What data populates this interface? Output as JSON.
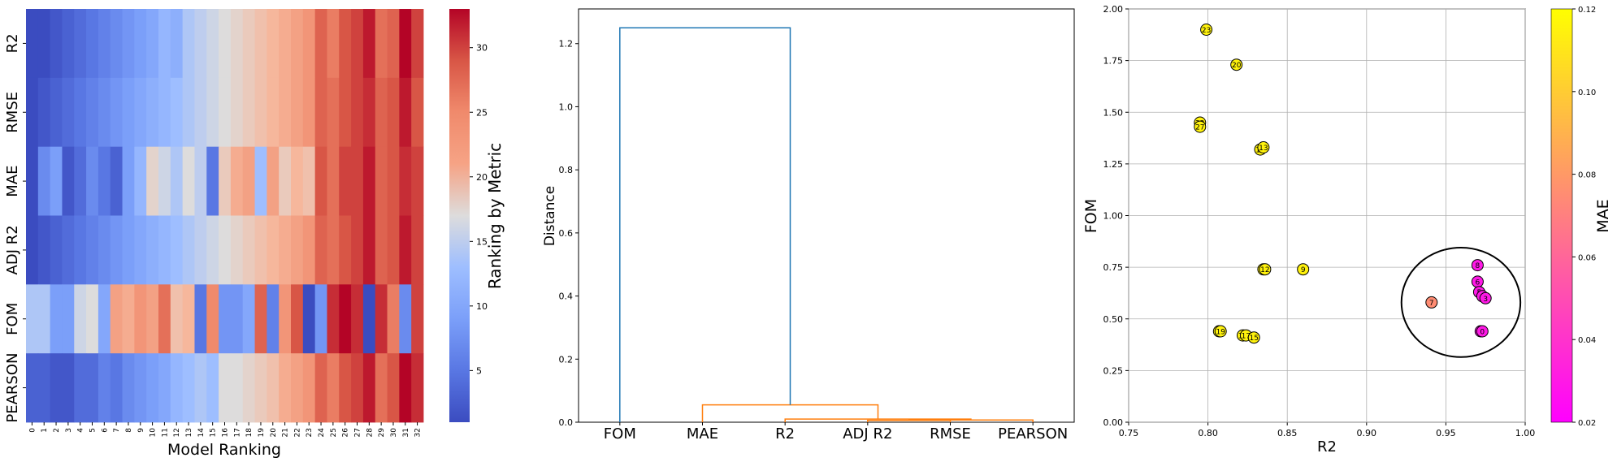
{
  "chart_data": [
    {
      "type": "heatmap",
      "rows": [
        "R2",
        "RMSE",
        "MAE",
        "ADJ R2",
        "FOM",
        "PEARSON"
      ],
      "columns": [
        "0",
        "1",
        "2",
        "3",
        "4",
        "5",
        "6",
        "7",
        "8",
        "9",
        "10",
        "11",
        "12",
        "13",
        "14",
        "15",
        "16",
        "17",
        "18",
        "19",
        "20",
        "21",
        "22",
        "23",
        "24",
        "25",
        "26",
        "27",
        "28",
        "29",
        "30",
        "31",
        "32"
      ],
      "values": [
        [
          1,
          1,
          2,
          3,
          4,
          5,
          6,
          7,
          8,
          9,
          10,
          12,
          11,
          14,
          15,
          16,
          17,
          18,
          19,
          20,
          21,
          22,
          23,
          24,
          28,
          26,
          29,
          30,
          32,
          27,
          28,
          33,
          30
        ],
        [
          1,
          2,
          3,
          4,
          5,
          6,
          7,
          8,
          9,
          10,
          11,
          12,
          13,
          14,
          15,
          16,
          17,
          18,
          19,
          20,
          21,
          22,
          23,
          24,
          28,
          27,
          29,
          30,
          31,
          28,
          29,
          32,
          29
        ],
        [
          1,
          7,
          9,
          2,
          4,
          7,
          5,
          3,
          9,
          12,
          18,
          16,
          14,
          17,
          15,
          5,
          19,
          22,
          23,
          13,
          23,
          19,
          21,
          20,
          29,
          27,
          30,
          30,
          32,
          28,
          29,
          31,
          30
        ],
        [
          1,
          2,
          3,
          4,
          5,
          6,
          7,
          8,
          9,
          10,
          11,
          12,
          13,
          14,
          15,
          16,
          17,
          18,
          19,
          20,
          21,
          22,
          23,
          24,
          28,
          27,
          29,
          30,
          32,
          28,
          29,
          32,
          30
        ],
        [
          14,
          14,
          9,
          9,
          16,
          17,
          10,
          23,
          22,
          24,
          23,
          27,
          20,
          21,
          5,
          25,
          8,
          8,
          10,
          28,
          6,
          24,
          29,
          1,
          8,
          31,
          33,
          31,
          1,
          31,
          26,
          7,
          30
        ],
        [
          3,
          3,
          2,
          2,
          4,
          4,
          6,
          5,
          7,
          8,
          9,
          10,
          12,
          13,
          14,
          13,
          17,
          17,
          18,
          19,
          20,
          22,
          23,
          24,
          28,
          26,
          29,
          30,
          32,
          27,
          29,
          33,
          31
        ]
      ],
      "xlabel": "Model Ranking",
      "colorbar_label": "Ranking by Metric",
      "color_range": [
        1,
        33
      ],
      "colorbar_ticks": [
        5,
        10,
        15,
        20,
        25,
        30
      ],
      "colormap": "coolwarm"
    },
    {
      "type": "dendrogram",
      "leaves": [
        "FOM",
        "MAE",
        "R2",
        "ADJ R2",
        "RMSE",
        "PEARSON"
      ],
      "merges": [
        {
          "left": 3,
          "right": 4,
          "left_height": 0.0,
          "right_height": 0.0,
          "height": 0.006,
          "color": "#ff7f0e"
        },
        {
          "left": 3.5,
          "right": 5,
          "left_height": 0.006,
          "right_height": 0.0,
          "height": 0.007,
          "color": "#ff7f0e"
        },
        {
          "left": 2,
          "right": 4.25,
          "left_height": 0.0,
          "right_height": 0.007,
          "height": 0.01,
          "color": "#ff7f0e"
        },
        {
          "left": 1,
          "right": 3.125,
          "left_height": 0.0,
          "right_height": 0.01,
          "height": 0.055,
          "color": "#ff7f0e"
        },
        {
          "left": 0,
          "right": 2.0625,
          "left_height": 0.0,
          "right_height": 0.055,
          "height": 1.25,
          "color": "#1f77b4"
        }
      ],
      "ylabel": "Distance",
      "ylim": [
        0,
        1.31
      ],
      "yticks": [
        "0.0",
        "0.2",
        "0.4",
        "0.6",
        "0.8",
        "1.0",
        "1.2"
      ]
    },
    {
      "type": "scatter",
      "xlabel": "R2",
      "ylabel": "FOM",
      "colorbar_label": "MAE",
      "xlim": [
        0.75,
        1.0
      ],
      "ylim": [
        0.0,
        2.0
      ],
      "xticks": [
        "0.75",
        "0.80",
        "0.85",
        "0.90",
        "0.95",
        "1.00"
      ],
      "yticks": [
        "0.00",
        "0.25",
        "0.50",
        "0.75",
        "1.00",
        "1.25",
        "1.50",
        "1.75",
        "2.00"
      ],
      "colorbar_ticks": [
        "0.02",
        "0.04",
        "0.06",
        "0.08",
        "0.10",
        "0.12"
      ],
      "color_range": [
        0.02,
        0.12
      ],
      "points": [
        {
          "label": "23",
          "x": 0.799,
          "y": 1.9,
          "mae": 0.115
        },
        {
          "label": "20",
          "x": 0.818,
          "y": 1.73,
          "mae": 0.115
        },
        {
          "label": "22",
          "x": 0.795,
          "y": 1.45,
          "mae": 0.115
        },
        {
          "label": "27",
          "x": 0.795,
          "y": 1.43,
          "mae": 0.115
        },
        {
          "label": "16",
          "x": 0.833,
          "y": 1.32,
          "mae": 0.115
        },
        {
          "label": "13",
          "x": 0.835,
          "y": 1.33,
          "mae": 0.115
        },
        {
          "label": "11",
          "x": 0.835,
          "y": 0.74,
          "mae": 0.115
        },
        {
          "label": "12",
          "x": 0.836,
          "y": 0.74,
          "mae": 0.115
        },
        {
          "label": "9",
          "x": 0.86,
          "y": 0.74,
          "mae": 0.115
        },
        {
          "label": "21",
          "x": 0.807,
          "y": 0.44,
          "mae": 0.115
        },
        {
          "label": "19",
          "x": 0.808,
          "y": 0.44,
          "mae": 0.115
        },
        {
          "label": "18",
          "x": 0.822,
          "y": 0.42,
          "mae": 0.115
        },
        {
          "label": "17",
          "x": 0.824,
          "y": 0.42,
          "mae": 0.115
        },
        {
          "label": "15",
          "x": 0.829,
          "y": 0.41,
          "mae": 0.115
        },
        {
          "label": "8",
          "x": 0.97,
          "y": 0.76,
          "mae": 0.03
        },
        {
          "label": "6",
          "x": 0.97,
          "y": 0.68,
          "mae": 0.03
        },
        {
          "label": "5",
          "x": 0.971,
          "y": 0.63,
          "mae": 0.03
        },
        {
          "label": "4",
          "x": 0.973,
          "y": 0.61,
          "mae": 0.03
        },
        {
          "label": "3",
          "x": 0.975,
          "y": 0.6,
          "mae": 0.03
        },
        {
          "label": "7",
          "x": 0.941,
          "y": 0.58,
          "mae": 0.075
        },
        {
          "label": "1",
          "x": 0.972,
          "y": 0.44,
          "mae": 0.03
        },
        {
          "label": "0",
          "x": 0.973,
          "y": 0.44,
          "mae": 0.03
        }
      ],
      "annotation": {
        "shape": "ellipse",
        "center_x": 0.9595,
        "center_y": 0.58,
        "radius_x": 0.0375,
        "radius_y": 0.265
      }
    }
  ]
}
